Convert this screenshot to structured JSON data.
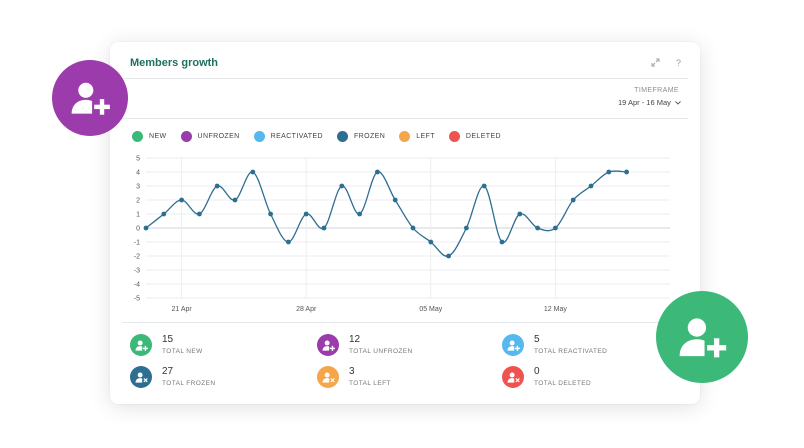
{
  "widget": {
    "title": "Members growth",
    "expand_icon": "expand-icon",
    "help_label": "?",
    "timeframe_label": "TIMEFRAME",
    "timeframe_value": "19 Apr - 16 May",
    "timeframe_icon": "chevron-down-icon"
  },
  "legend": [
    {
      "label": "NEW",
      "color": "#3cb878"
    },
    {
      "label": "UNFROZEN",
      "color": "#9b3bac"
    },
    {
      "label": "REACTIVATED",
      "color": "#56b8ec"
    },
    {
      "label": "FROZEN",
      "color": "#2e6e91"
    },
    {
      "label": "LEFT",
      "color": "#f6a64a"
    },
    {
      "label": "DELETED",
      "color": "#ef5350"
    }
  ],
  "chart_data": {
    "type": "line",
    "x_tick_labels": [
      "21 Apr",
      "28 Apr",
      "05 May",
      "12 May"
    ],
    "ylim": [
      -5,
      5
    ],
    "y_ticks": [
      5,
      4,
      3,
      2,
      1,
      0,
      -1,
      -2,
      -3,
      -4,
      -5
    ],
    "grid": true,
    "series": [
      {
        "color": "#2e6e91",
        "x": [
          "19 Apr",
          "20 Apr",
          "21 Apr",
          "22 Apr",
          "23 Apr",
          "24 Apr",
          "25 Apr",
          "26 Apr",
          "27 Apr",
          "28 Apr",
          "29 Apr",
          "30 Apr",
          "01 May",
          "02 May",
          "03 May",
          "04 May",
          "05 May",
          "06 May",
          "07 May",
          "08 May",
          "09 May",
          "10 May",
          "11 May",
          "12 May",
          "13 May",
          "14 May",
          "15 May",
          "16 May"
        ],
        "values": [
          0,
          1,
          2,
          1,
          3,
          2,
          4,
          1,
          -1,
          1,
          0,
          3,
          1,
          4,
          2,
          0,
          -1,
          -2,
          0,
          3,
          -1,
          1,
          0,
          0,
          2,
          3,
          4,
          4
        ]
      }
    ]
  },
  "stats": [
    {
      "value": "15",
      "label": "TOTAL NEW",
      "color": "#3cb878",
      "icon": "user-plus-icon"
    },
    {
      "value": "12",
      "label": "TOTAL UNFROZEN",
      "color": "#9b3bac",
      "icon": "user-plus-icon"
    },
    {
      "value": "5",
      "label": "TOTAL REACTIVATED",
      "color": "#56b8ec",
      "icon": "user-plus-icon"
    },
    {
      "value": "27",
      "label": "TOTAL FROZEN",
      "color": "#2e6e91",
      "icon": "user-remove-icon"
    },
    {
      "value": "3",
      "label": "TOTAL LEFT",
      "color": "#f6a64a",
      "icon": "user-remove-icon"
    },
    {
      "value": "0",
      "label": "TOTAL DELETED",
      "color": "#ef5350",
      "icon": "user-remove-icon"
    }
  ],
  "decor": {
    "badge_left_color": "#9b3bac",
    "badge_right_color": "#3cb878",
    "badge_icon": "user-plus-icon"
  }
}
